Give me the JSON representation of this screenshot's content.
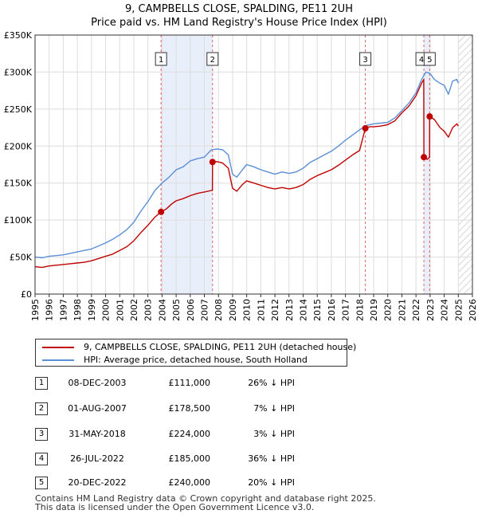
{
  "chart_data": {
    "type": "line",
    "title": "9, CAMPBELLS CLOSE, SPALDING, PE11 2UH",
    "subtitle": "Price paid vs. HM Land Registry's House Price Index (HPI)",
    "xlim": [
      1995,
      2026
    ],
    "ylim": [
      0,
      350000
    ],
    "y_ticks": [
      {
        "value": 0,
        "label": "£0"
      },
      {
        "value": 50000,
        "label": "£50K"
      },
      {
        "value": 100000,
        "label": "£100K"
      },
      {
        "value": 150000,
        "label": "£150K"
      },
      {
        "value": 200000,
        "label": "£200K"
      },
      {
        "value": 250000,
        "label": "£250K"
      },
      {
        "value": 300000,
        "label": "£300K"
      },
      {
        "value": 350000,
        "label": "£350K"
      }
    ],
    "x_ticks": [
      "1995",
      "1996",
      "1997",
      "1998",
      "1999",
      "2000",
      "2001",
      "2002",
      "2003",
      "2004",
      "2005",
      "2006",
      "2007",
      "2008",
      "2009",
      "2010",
      "2011",
      "2012",
      "2013",
      "2014",
      "2015",
      "2016",
      "2017",
      "2018",
      "2019",
      "2020",
      "2021",
      "2022",
      "2023",
      "2024",
      "2025",
      "2026"
    ],
    "grid": true,
    "shaded_ranges": [
      {
        "from": 2003.93,
        "to": 2007.58
      },
      {
        "from": 2022.56,
        "to": 2022.97
      },
      {
        "from": 2025.0,
        "to": 2026.0,
        "hatched": true
      }
    ],
    "series": [
      {
        "name": "HPI: Average price, detached house, South Holland",
        "color": "#5b8fd6",
        "x": [
          1995.0,
          1995.5,
          1996.0,
          1996.5,
          1997.0,
          1997.5,
          1998.0,
          1998.5,
          1999.0,
          1999.5,
          2000.0,
          2000.5,
          2001.0,
          2001.5,
          2002.0,
          2002.5,
          2003.0,
          2003.5,
          2004.0,
          2004.5,
          2005.0,
          2005.5,
          2006.0,
          2006.5,
          2007.0,
          2007.5,
          2007.9,
          2008.3,
          2008.7,
          2009.0,
          2009.3,
          2009.7,
          2010.0,
          2010.5,
          2011.0,
          2011.5,
          2012.0,
          2012.5,
          2013.0,
          2013.5,
          2014.0,
          2014.5,
          2015.0,
          2015.5,
          2016.0,
          2016.5,
          2017.0,
          2017.5,
          2018.0,
          2018.5,
          2019.0,
          2019.5,
          2020.0,
          2020.5,
          2021.0,
          2021.5,
          2022.0,
          2022.4,
          2022.7,
          2023.0,
          2023.3,
          2023.7,
          2024.0,
          2024.3,
          2024.6,
          2024.9,
          2025.0
        ],
        "values": [
          50000,
          49000,
          51000,
          52000,
          53000,
          55000,
          57000,
          59000,
          61000,
          65000,
          69000,
          74000,
          80000,
          87000,
          97000,
          112000,
          125000,
          140000,
          150000,
          158000,
          168000,
          172000,
          180000,
          183000,
          185000,
          195000,
          196000,
          195000,
          188000,
          162000,
          158000,
          168000,
          175000,
          172000,
          168000,
          165000,
          162000,
          165000,
          163000,
          165000,
          170000,
          178000,
          183000,
          188000,
          193000,
          200000,
          208000,
          215000,
          222000,
          228000,
          230000,
          231000,
          232000,
          238000,
          248000,
          258000,
          272000,
          290000,
          300000,
          298000,
          290000,
          285000,
          282000,
          270000,
          288000,
          290000,
          285000
        ]
      },
      {
        "name": "9, CAMPBELLS CLOSE, SPALDING, PE11 2UH (detached house)",
        "color": "#c00000",
        "x": [
          1995.0,
          1995.5,
          1996.0,
          1996.5,
          1997.0,
          1997.5,
          1998.0,
          1998.5,
          1999.0,
          1999.5,
          2000.0,
          2000.5,
          2001.0,
          2001.5,
          2002.0,
          2002.5,
          2003.0,
          2003.5,
          2003.93,
          2004.3,
          2004.7,
          2005.0,
          2005.5,
          2006.0,
          2006.5,
          2007.0,
          2007.5,
          2007.57,
          2007.58,
          2007.9,
          2008.3,
          2008.7,
          2009.0,
          2009.3,
          2009.7,
          2010.0,
          2010.5,
          2011.0,
          2011.5,
          2012.0,
          2012.5,
          2013.0,
          2013.5,
          2014.0,
          2014.5,
          2015.0,
          2015.5,
          2016.0,
          2016.5,
          2017.0,
          2017.5,
          2018.0,
          2018.41,
          2018.7,
          2019.0,
          2019.5,
          2020.0,
          2020.5,
          2021.0,
          2021.5,
          2022.0,
          2022.4,
          2022.55,
          2022.56,
          2022.8,
          2022.96,
          2022.97,
          2023.3,
          2023.7,
          2024.0,
          2024.3,
          2024.6,
          2024.9,
          2025.0
        ],
        "values": [
          37000,
          36000,
          38000,
          39000,
          40000,
          41000,
          42000,
          43000,
          45000,
          48000,
          51000,
          54000,
          59000,
          64000,
          72000,
          83000,
          93000,
          104000,
          111000,
          115000,
          122000,
          126000,
          129000,
          133000,
          136000,
          138000,
          140000,
          140000,
          178500,
          179000,
          177000,
          170000,
          143000,
          139000,
          148000,
          153000,
          150000,
          147000,
          144000,
          142000,
          144000,
          142000,
          144000,
          148000,
          155000,
          160000,
          164000,
          168000,
          174000,
          181000,
          188000,
          194000,
          224000,
          226000,
          226000,
          227000,
          229000,
          234000,
          245000,
          254000,
          268000,
          285000,
          290000,
          185000,
          182000,
          185000,
          240000,
          236000,
          225000,
          220000,
          212000,
          225000,
          230000,
          227000
        ]
      }
    ],
    "sales": [
      {
        "id": "1",
        "x": 2003.93,
        "value": 111000
      },
      {
        "id": "2",
        "x": 2007.58,
        "value": 178500
      },
      {
        "id": "3",
        "x": 2018.41,
        "value": 224000
      },
      {
        "id": "4",
        "x": 2022.56,
        "value": 185000
      },
      {
        "id": "5",
        "x": 2022.97,
        "value": 240000
      }
    ]
  },
  "legend": {
    "property_label": "9, CAMPBELLS CLOSE, SPALDING, PE11 2UH (detached house)",
    "hpi_label": "HPI: Average price, detached house, South Holland",
    "property_color": "#c00000",
    "hpi_color": "#5b8fd6"
  },
  "table": [
    {
      "num": "1",
      "date": "08-DEC-2003",
      "price": "£111,000",
      "diff": "26% ↓ HPI"
    },
    {
      "num": "2",
      "date": "01-AUG-2007",
      "price": "£178,500",
      "diff": "7% ↓ HPI"
    },
    {
      "num": "3",
      "date": "31-MAY-2018",
      "price": "£224,000",
      "diff": "3% ↓ HPI"
    },
    {
      "num": "4",
      "date": "26-JUL-2022",
      "price": "£185,000",
      "diff": "36% ↓ HPI"
    },
    {
      "num": "5",
      "date": "20-DEC-2022",
      "price": "£240,000",
      "diff": "20% ↓ HPI"
    }
  ],
  "footer": {
    "line1": "Contains HM Land Registry data © Crown copyright and database right 2025.",
    "line2": "This data is licensed under the Open Government Licence v3.0."
  }
}
